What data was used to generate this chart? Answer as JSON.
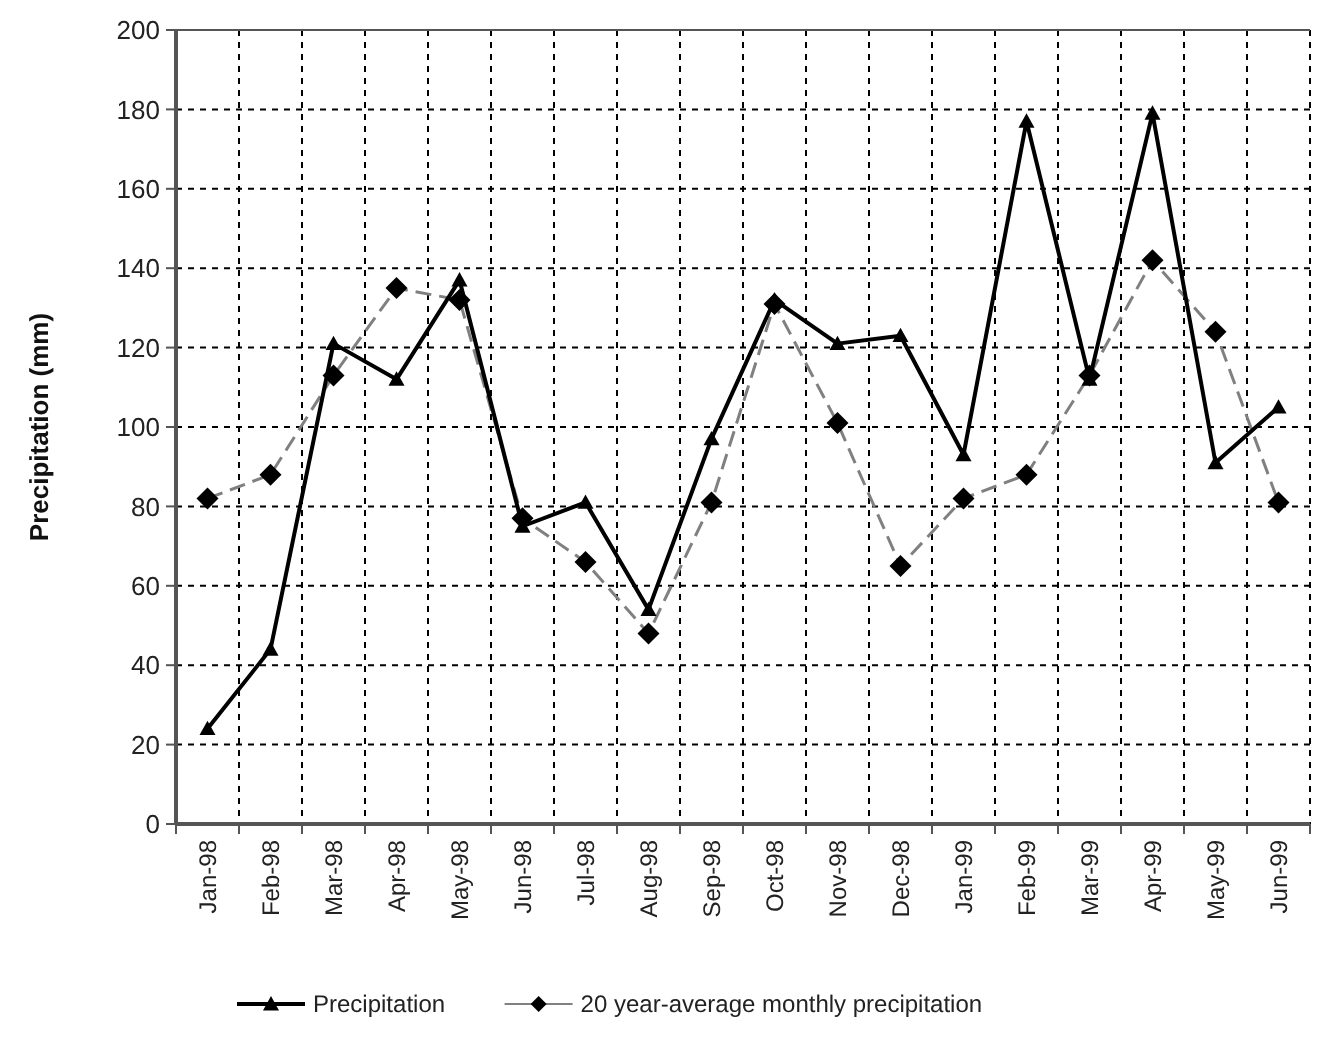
{
  "chart_data": {
    "type": "line",
    "ylabel": "Precipitation (mm)",
    "categories": [
      "Jan-98",
      "Feb-98",
      "Mar-98",
      "Apr-98",
      "May-98",
      "Jun-98",
      "Jul-98",
      "Aug-98",
      "Sep-98",
      "Oct-98",
      "Nov-98",
      "Dec-98",
      "Jan-99",
      "Feb-99",
      "Mar-99",
      "Apr-99",
      "May-99",
      "Jun-99"
    ],
    "series": [
      {
        "name": "Precipitation",
        "color": "#000000",
        "marker": "triangle",
        "line_style": "solid",
        "values": [
          24,
          44,
          121,
          112,
          137,
          75,
          81,
          54,
          97,
          132,
          121,
          123,
          93,
          177,
          112,
          179,
          91,
          105
        ]
      },
      {
        "name": "20 year-average monthly precipitation",
        "color": "#808080",
        "marker": "diamond",
        "line_style": "dashed",
        "values": [
          82,
          88,
          113,
          135,
          132,
          77,
          66,
          48,
          81,
          131,
          101,
          65,
          82,
          88,
          113,
          142,
          124,
          81
        ]
      }
    ],
    "ylim": [
      0,
      200
    ],
    "yticks": [
      0,
      20,
      40,
      60,
      80,
      100,
      120,
      140,
      160,
      180,
      200
    ],
    "grid": true,
    "legend": "bottom"
  }
}
